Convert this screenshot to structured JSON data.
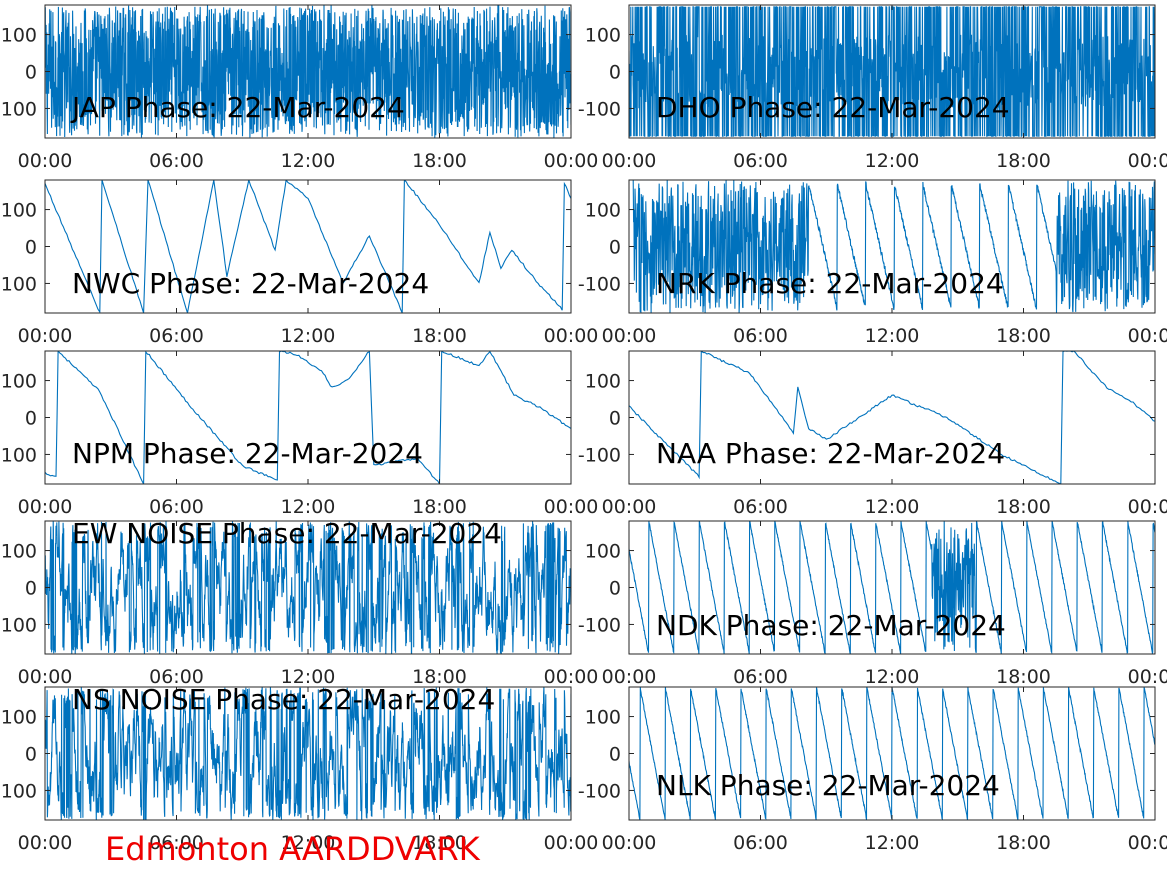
{
  "footer": {
    "text": "Edmonton AARDDVARK",
    "color": "#ee0000"
  },
  "colors": {
    "line": "#0072bd",
    "axes": "#262626",
    "background": "#ffffff"
  },
  "chart_data": [
    {
      "type": "line",
      "title": "JAP Phase: 22-Mar-2024",
      "x_ticks": [
        "00:00",
        "06:00",
        "12:00",
        "18:00",
        "00:00"
      ],
      "y_ticks": [
        "100",
        "0",
        "-100"
      ],
      "xlim": [
        "00:00",
        "24:00"
      ],
      "ylim": [
        -180,
        180
      ],
      "grid": false,
      "pattern": "dense",
      "y_units": "degrees"
    },
    {
      "type": "line",
      "title": "DHO Phase: 22-Mar-2024",
      "x_ticks": [
        "00:00",
        "06:00",
        "12:00",
        "18:00",
        "00:00"
      ],
      "y_ticks": [
        "100",
        "0",
        "-100"
      ],
      "xlim": [
        "00:00",
        "24:00"
      ],
      "ylim": [
        -180,
        180
      ],
      "grid": false,
      "pattern": "fast-wrap",
      "y_units": "degrees"
    },
    {
      "type": "line",
      "title": "NWC Phase: 22-Mar-2024",
      "x_ticks": [
        "00:00",
        "06:00",
        "12:00",
        "18:00",
        "00:00"
      ],
      "y_ticks": [
        "100",
        "0",
        "-100"
      ],
      "xlim": [
        "00:00",
        "24:00"
      ],
      "ylim": [
        -180,
        180
      ],
      "grid": false,
      "pattern": "drift",
      "points": [
        [
          0,
          170
        ],
        [
          2.5,
          -180
        ],
        [
          2.6,
          180
        ],
        [
          4.5,
          -180
        ],
        [
          4.7,
          180
        ],
        [
          6.5,
          -180
        ],
        [
          7.7,
          180
        ],
        [
          8.3,
          -80
        ],
        [
          9.3,
          180
        ],
        [
          10.5,
          -10
        ],
        [
          11.0,
          180
        ],
        [
          12.0,
          130
        ],
        [
          13.6,
          -100
        ],
        [
          14.8,
          30
        ],
        [
          16.3,
          -180
        ],
        [
          16.4,
          180
        ],
        [
          18.0,
          60
        ],
        [
          19.8,
          -100
        ],
        [
          20.3,
          40
        ],
        [
          20.8,
          -60
        ],
        [
          21.3,
          -10
        ],
        [
          22.5,
          -100
        ],
        [
          23.6,
          -170
        ],
        [
          23.7,
          170
        ],
        [
          24,
          130
        ]
      ]
    },
    {
      "type": "line",
      "title": "NRK Phase: 22-Mar-2024",
      "x_ticks": [
        "00:00",
        "06:00",
        "12:00",
        "18:00",
        "00:00"
      ],
      "y_ticks": [
        "100",
        "0",
        "-100"
      ],
      "xlim": [
        "00:00",
        "24:00"
      ],
      "ylim": [
        -180,
        180
      ],
      "grid": false,
      "pattern": "noisy-drift",
      "y_units": "degrees"
    },
    {
      "type": "line",
      "title": "NPM Phase: 22-Mar-2024",
      "x_ticks": [
        "00:00",
        "06:00",
        "12:00",
        "18:00",
        "00:00"
      ],
      "y_ticks": [
        "100",
        "0",
        "-100"
      ],
      "xlim": [
        "00:00",
        "24:00"
      ],
      "ylim": [
        -180,
        180
      ],
      "grid": false,
      "pattern": "drift",
      "points": [
        [
          0,
          -150
        ],
        [
          0.5,
          -160
        ],
        [
          0.6,
          180
        ],
        [
          2.5,
          70
        ],
        [
          4.5,
          -180
        ],
        [
          4.6,
          180
        ],
        [
          6.5,
          40
        ],
        [
          9.0,
          -130
        ],
        [
          10.6,
          -170
        ],
        [
          10.7,
          180
        ],
        [
          11.5,
          170
        ],
        [
          12.7,
          120
        ],
        [
          13.1,
          80
        ],
        [
          13.8,
          100
        ],
        [
          14.8,
          180
        ],
        [
          15.0,
          -130
        ],
        [
          17.0,
          -110
        ],
        [
          18.0,
          -180
        ],
        [
          18.1,
          180
        ],
        [
          19.8,
          140
        ],
        [
          20.3,
          180
        ],
        [
          21.4,
          60
        ],
        [
          22.5,
          30
        ],
        [
          24,
          -30
        ]
      ]
    },
    {
      "type": "line",
      "title": "NAA Phase: 22-Mar-2024",
      "x_ticks": [
        "00:00",
        "06:00",
        "12:00",
        "18:00",
        "00:00"
      ],
      "y_ticks": [
        "100",
        "0",
        "-100"
      ],
      "xlim": [
        "00:00",
        "24:00"
      ],
      "ylim": [
        -180,
        180
      ],
      "grid": false,
      "pattern": "drift",
      "points": [
        [
          0,
          30
        ],
        [
          1.5,
          -60
        ],
        [
          3.2,
          -160
        ],
        [
          3.3,
          180
        ],
        [
          5.5,
          120
        ],
        [
          7.5,
          -40
        ],
        [
          7.7,
          80
        ],
        [
          8.2,
          -30
        ],
        [
          9.0,
          -60
        ],
        [
          10.0,
          -20
        ],
        [
          11.5,
          40
        ],
        [
          12.0,
          60
        ],
        [
          14.5,
          0
        ],
        [
          17.0,
          -100
        ],
        [
          19.7,
          -180
        ],
        [
          19.8,
          180
        ],
        [
          20.3,
          180
        ],
        [
          21.8,
          80
        ],
        [
          23.0,
          40
        ],
        [
          24,
          -10
        ]
      ]
    },
    {
      "type": "line",
      "title": "EW NOISE Phase: 22-Mar-2024",
      "x_ticks": [
        "00:00",
        "06:00",
        "12:00",
        "18:00",
        "00:00"
      ],
      "y_ticks": [
        "100",
        "0",
        "-100"
      ],
      "xlim": [
        "00:00",
        "24:00"
      ],
      "ylim": [
        -180,
        180
      ],
      "grid": false,
      "pattern": "noise",
      "y_units": "degrees"
    },
    {
      "type": "line",
      "title": "NDK Phase: 22-Mar-2024",
      "x_ticks": [
        "00:00",
        "06:00",
        "12:00",
        "18:00",
        "00:00"
      ],
      "y_ticks": [
        "100",
        "0",
        "-100"
      ],
      "xlim": [
        "00:00",
        "24:00"
      ],
      "ylim": [
        -180,
        180
      ],
      "grid": false,
      "pattern": "sawtooth",
      "y_units": "degrees"
    },
    {
      "type": "line",
      "title": "NS NOISE Phase: 22-Mar-2024",
      "x_ticks": [
        "00:00",
        "06:00",
        "12:00",
        "18:00",
        "00:00"
      ],
      "y_ticks": [
        "100",
        "0",
        "-100"
      ],
      "xlim": [
        "00:00",
        "24:00"
      ],
      "ylim": [
        -180,
        180
      ],
      "grid": false,
      "pattern": "noise",
      "y_units": "degrees"
    },
    {
      "type": "line",
      "title": "NLK Phase: 22-Mar-2024",
      "x_ticks": [
        "00:00",
        "06:00",
        "12:00",
        "18:00",
        "00:00"
      ],
      "y_ticks": [
        "100",
        "0",
        "-100"
      ],
      "xlim": [
        "00:00",
        "24:00"
      ],
      "ylim": [
        -180,
        180
      ],
      "grid": false,
      "pattern": "sawtooth",
      "y_units": "degrees"
    }
  ]
}
